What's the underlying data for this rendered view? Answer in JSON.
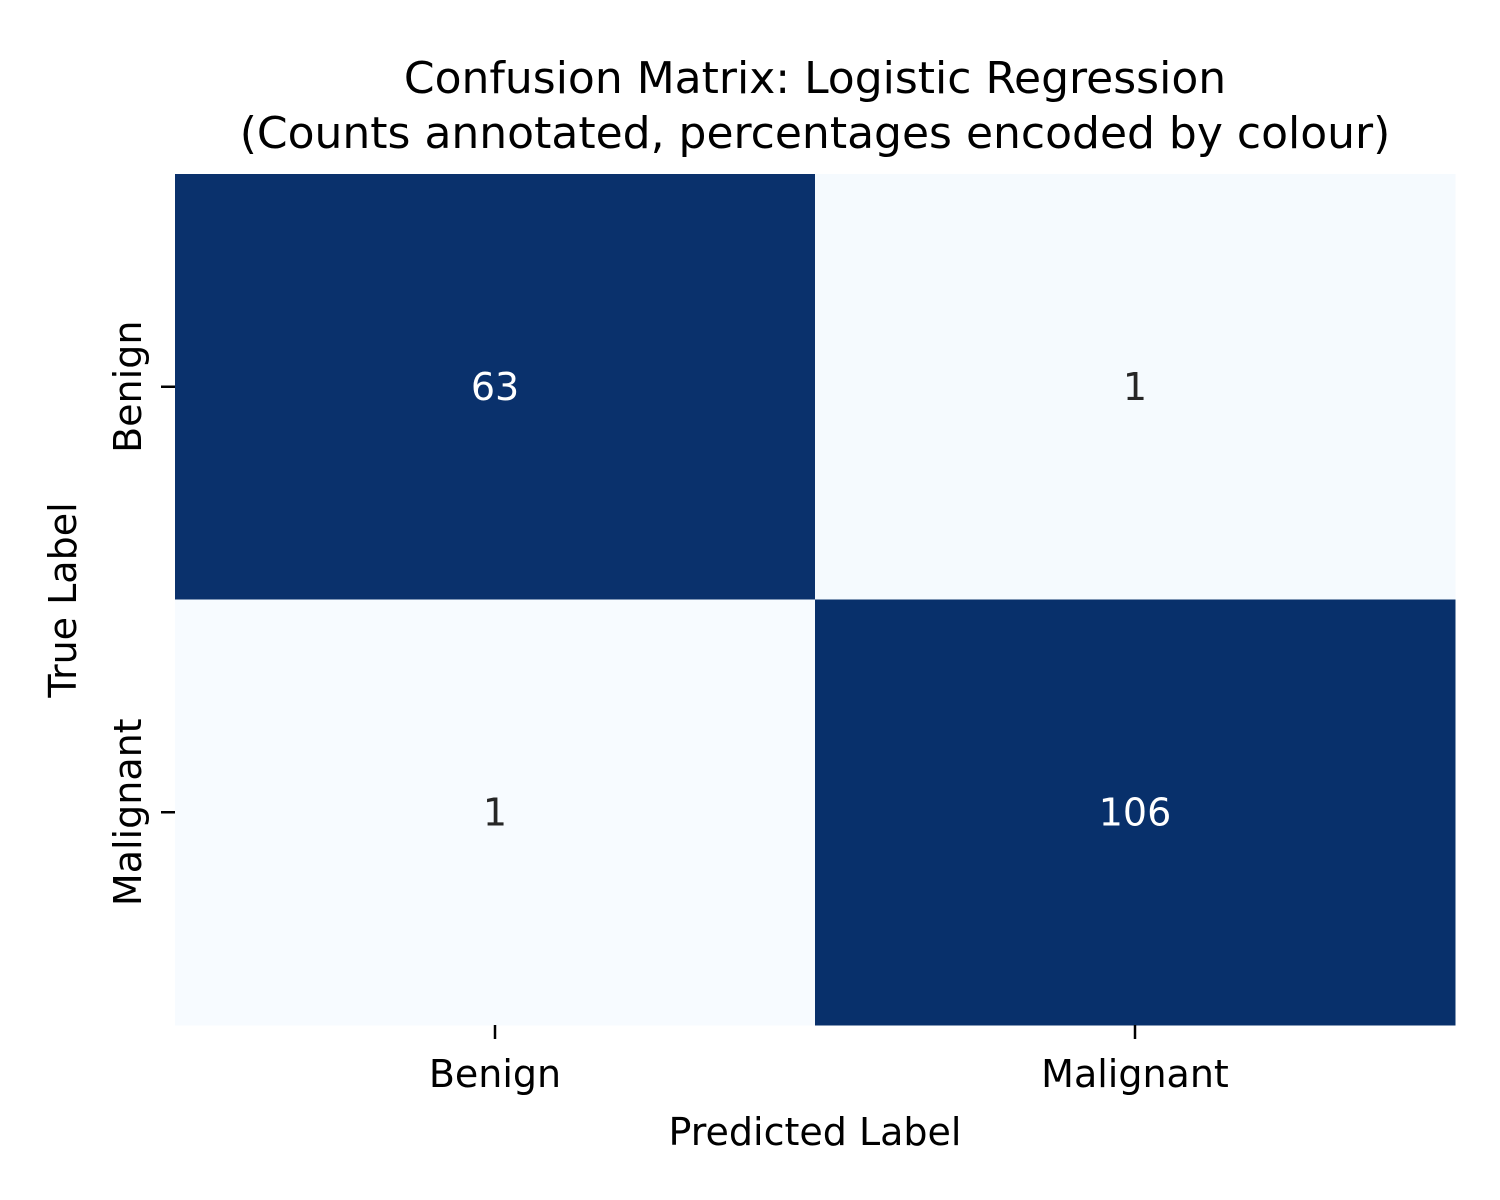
{
  "chart_data": {
    "type": "heatmap",
    "title": "Confusion Matrix: Logistic Regression",
    "subtitle": "(Counts annotated, percentages encoded by colour)",
    "xlabel": "Predicted Label",
    "ylabel": "True Label",
    "x_categories": [
      "Benign",
      "Malignant"
    ],
    "y_categories": [
      "Benign",
      "Malignant"
    ],
    "values": [
      [
        63,
        1
      ],
      [
        1,
        106
      ]
    ],
    "percentages": [
      [
        98.4,
        1.6
      ],
      [
        0.9,
        99.1
      ]
    ],
    "colormap": "Blues",
    "colorbar": false,
    "colors": {
      "high": "#08306b",
      "low": "#f7fbff",
      "text_on_dark": "#ffffff",
      "text_on_light": "#262626"
    }
  }
}
